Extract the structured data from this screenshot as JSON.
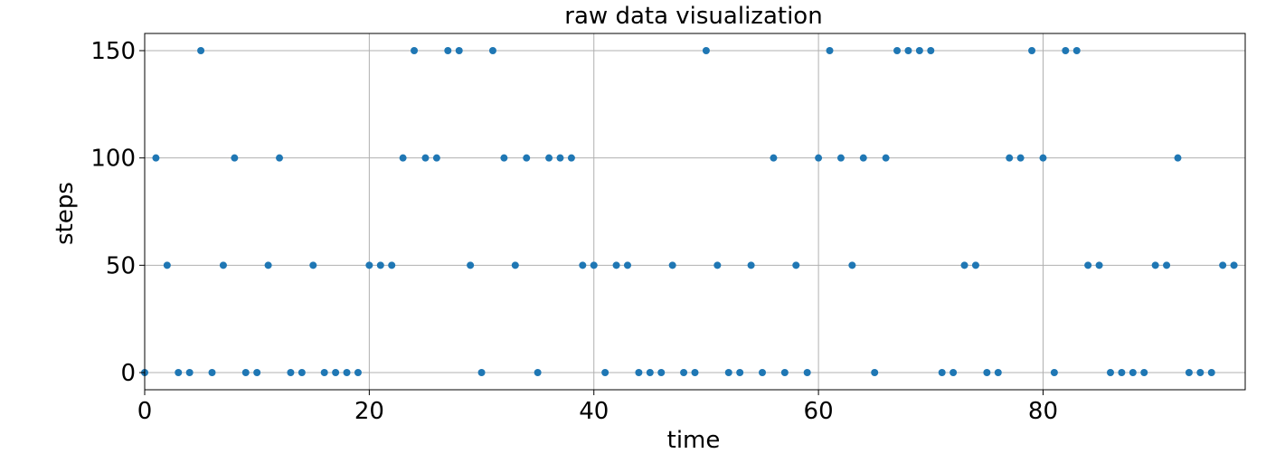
{
  "chart_data": {
    "type": "scatter",
    "title": "raw data visualization",
    "xlabel": "time",
    "ylabel": "steps",
    "xlim": [
      0,
      98
    ],
    "ylim": [
      -8,
      158
    ],
    "xticks": [
      0,
      20,
      40,
      60,
      80
    ],
    "yticks": [
      0,
      50,
      100,
      150
    ],
    "grid": true,
    "marker_color": "#1f77b4",
    "x": [
      0,
      1,
      2,
      3,
      4,
      5,
      6,
      7,
      8,
      9,
      10,
      11,
      12,
      13,
      14,
      15,
      16,
      17,
      18,
      19,
      20,
      21,
      22,
      23,
      24,
      25,
      26,
      27,
      28,
      29,
      30,
      31,
      32,
      33,
      34,
      35,
      36,
      37,
      38,
      39,
      40,
      41,
      42,
      43,
      44,
      45,
      46,
      47,
      48,
      49,
      50,
      51,
      52,
      53,
      54,
      55,
      56,
      57,
      58,
      59,
      60,
      61,
      62,
      63,
      64,
      65,
      66,
      67,
      68,
      69,
      70,
      71,
      72,
      73,
      74,
      75,
      76,
      77,
      78,
      79,
      80,
      81,
      82,
      83,
      84,
      85,
      86,
      87,
      88,
      89,
      90,
      91,
      92,
      93,
      94,
      95,
      96,
      97
    ],
    "y": [
      0,
      100,
      50,
      0,
      0,
      150,
      0,
      50,
      100,
      0,
      0,
      50,
      100,
      0,
      0,
      50,
      0,
      0,
      0,
      0,
      50,
      50,
      50,
      100,
      150,
      100,
      100,
      150,
      150,
      50,
      0,
      150,
      100,
      50,
      100,
      0,
      100,
      100,
      100,
      50,
      50,
      0,
      50,
      50,
      0,
      0,
      0,
      50,
      0,
      0,
      150,
      50,
      0,
      0,
      50,
      0,
      100,
      0,
      50,
      0,
      100,
      150,
      100,
      50,
      100,
      0,
      100,
      150,
      150,
      150,
      150,
      0,
      0,
      50,
      50,
      0,
      0,
      100,
      100,
      150,
      100,
      0,
      150,
      150,
      50,
      50,
      0,
      0,
      0,
      0,
      50,
      50,
      100,
      0,
      0,
      0,
      50,
      50
    ]
  }
}
